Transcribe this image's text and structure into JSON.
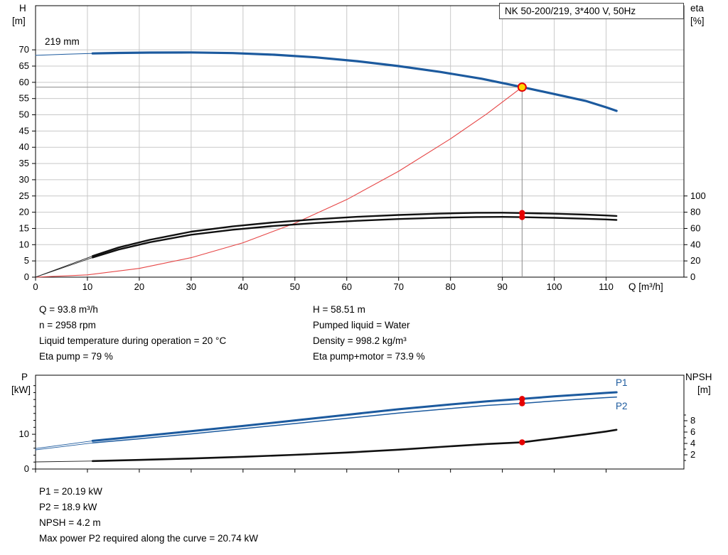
{
  "labels": {
    "h": "H",
    "h_unit": "[m]",
    "eta": "eta",
    "eta_unit": "[%]",
    "q": "Q [m³/h]",
    "p": "P",
    "p_unit": "[kW]",
    "npsh": "NPSH",
    "npsh_unit": "[m]",
    "impeller": "219 mm",
    "p1": "P1",
    "p2": "P2"
  },
  "info": {
    "left": [
      "Q = 93.8 m³/h",
      "n = 2958 rpm",
      "Liquid temperature during operation = 20 °C",
      "Eta pump = 79 %"
    ],
    "right": [
      "H = 58.51 m",
      "Pumped liquid = Water",
      "Density = 998.2 kg/m³",
      "Eta pump+motor = 73.9 %"
    ],
    "bottom": [
      "P1 = 20.19 kW",
      "P2 = 18.9 kW",
      "NPSH = 4.2 m",
      "Max power P2 required along the curve = 20.74 kW"
    ]
  },
  "colors": {
    "curve_blue": "#1c5a9e",
    "marker_red": "#e60000",
    "duty_yellow": "#ffd800",
    "system_red": "#e64545",
    "grid": "#c8c8c8"
  },
  "chart_data": [
    {
      "type": "line",
      "title": "NK 50-200/219, 3*400 V, 50Hz",
      "x_axis": {
        "label": "Q [m³/h]",
        "min": 0,
        "max": 125,
        "ticks": [
          0,
          10,
          20,
          30,
          40,
          50,
          60,
          70,
          80,
          90,
          100,
          110
        ],
        "show_labels": true
      },
      "y_left": {
        "label": "H [m]",
        "min": 0,
        "max": 83.6,
        "ticks": [
          0,
          5,
          10,
          15,
          20,
          25,
          30,
          35,
          40,
          45,
          50,
          55,
          60,
          65,
          70
        ]
      },
      "y_right": {
        "label": "eta [%]",
        "min": 0,
        "max": 334.4,
        "ticks": [
          0,
          20,
          40,
          60,
          80,
          100
        ]
      },
      "grid": true,
      "grid_color": "#c8c8c8",
      "crosshair": {
        "x": 93.8,
        "y": 58.51,
        "color": "#8a8a8a"
      },
      "series": [
        {
          "name": "head-219mm-lead",
          "axis": "left",
          "color": "#1c5a9e",
          "width": 1,
          "points": [
            [
              0,
              68.3
            ],
            [
              6,
              68.65
            ],
            [
              11,
              68.9
            ]
          ]
        },
        {
          "name": "head-219mm",
          "axis": "left",
          "color": "#1c5a9e",
          "width": 3.2,
          "points": [
            [
              11,
              68.9
            ],
            [
              16,
              69.05
            ],
            [
              22,
              69.15
            ],
            [
              30,
              69.2
            ],
            [
              38,
              69.0
            ],
            [
              46,
              68.5
            ],
            [
              54,
              67.7
            ],
            [
              62,
              66.5
            ],
            [
              70,
              65.0
            ],
            [
              78,
              63.2
            ],
            [
              86,
              61.1
            ],
            [
              93.8,
              58.51
            ],
            [
              100,
              56.4
            ],
            [
              106,
              54.3
            ],
            [
              110,
              52.3
            ],
            [
              112,
              51.2
            ]
          ]
        },
        {
          "name": "system-curve",
          "axis": "left",
          "color": "#e64545",
          "width": 1.1,
          "points": [
            [
              0,
              0
            ],
            [
              10,
              0.7
            ],
            [
              20,
              2.7
            ],
            [
              30,
              6.0
            ],
            [
              40,
              10.6
            ],
            [
              50,
              16.6
            ],
            [
              60,
              23.9
            ],
            [
              70,
              32.6
            ],
            [
              80,
              42.6
            ],
            [
              87,
              50.3
            ],
            [
              93.8,
              58.51
            ]
          ]
        },
        {
          "name": "eta-pump-lead",
          "axis": "right",
          "color": "#222222",
          "width": 0.9,
          "points": [
            [
              0,
              0
            ],
            [
              11,
              26
            ]
          ]
        },
        {
          "name": "eta-pump-motor-lead",
          "axis": "right",
          "color": "#222222",
          "width": 0.9,
          "points": [
            [
              0,
              0
            ],
            [
              11,
              24.2
            ]
          ]
        },
        {
          "name": "eta-pump",
          "axis": "right",
          "color": "#111111",
          "width": 2.4,
          "points": [
            [
              11,
              26
            ],
            [
              16,
              36.5
            ],
            [
              22,
              46
            ],
            [
              30,
              56
            ],
            [
              38,
              62.5
            ],
            [
              46,
              67.5
            ],
            [
              54,
              71.3
            ],
            [
              62,
              74.3
            ],
            [
              70,
              76.6
            ],
            [
              78,
              78.3
            ],
            [
              85,
              79.3
            ],
            [
              90,
              79.4
            ],
            [
              93.8,
              79.0
            ],
            [
              100,
              78.2
            ],
            [
              106,
              77.0
            ],
            [
              110,
              76.0
            ],
            [
              112,
              75.4
            ]
          ]
        },
        {
          "name": "eta-pump-motor",
          "axis": "right",
          "color": "#111111",
          "width": 2.4,
          "points": [
            [
              11,
              24.2
            ],
            [
              16,
              34
            ],
            [
              22,
              43
            ],
            [
              30,
              52.3
            ],
            [
              38,
              58.4
            ],
            [
              46,
              63.1
            ],
            [
              54,
              66.7
            ],
            [
              62,
              69.4
            ],
            [
              70,
              71.6
            ],
            [
              78,
              73.2
            ],
            [
              85,
              74.1
            ],
            [
              90,
              74.2
            ],
            [
              93.8,
              73.9
            ],
            [
              100,
              73.1
            ],
            [
              106,
              72.0
            ],
            [
              110,
              71.1
            ],
            [
              112,
              70.5
            ]
          ]
        }
      ],
      "markers": [
        {
          "name": "duty-point",
          "x": 93.8,
          "y": 58.51,
          "axis": "left",
          "r": 5.5,
          "fill": "#ffd800",
          "stroke": "#e60000"
        },
        {
          "name": "eta-pump-point",
          "x": 93.8,
          "y": 79.0,
          "axis": "right",
          "r": 4.2,
          "fill": "#e60000"
        },
        {
          "name": "eta-pump-motor-point",
          "x": 93.8,
          "y": 73.9,
          "axis": "right",
          "r": 4.2,
          "fill": "#e60000"
        }
      ]
    },
    {
      "type": "line",
      "title": "",
      "x_axis": {
        "label": "",
        "min": 0,
        "max": 125,
        "ticks": [
          0,
          10,
          20,
          30,
          40,
          50,
          60,
          70,
          80,
          90,
          100,
          110
        ],
        "show_labels": false
      },
      "y_left": {
        "label": "P [kW]",
        "min": 0,
        "max": 27,
        "ticks": [
          0,
          10
        ],
        "minor_ticks": [
          2,
          4,
          6,
          8,
          12,
          14,
          16,
          18,
          20,
          22,
          24
        ]
      },
      "y_right": {
        "label": "NPSH [m]",
        "min": -0.5,
        "max": 16,
        "ticks": [
          2,
          4,
          6,
          8
        ],
        "minor_ticks": [
          1,
          3,
          5,
          7,
          9
        ]
      },
      "grid": false,
      "series": [
        {
          "name": "p1-lead",
          "axis": "left",
          "color": "#1c5a9e",
          "width": 0.9,
          "points": [
            [
              0,
              5.9
            ],
            [
              11,
              8.1
            ]
          ]
        },
        {
          "name": "p2-lead",
          "axis": "left",
          "color": "#1c5a9e",
          "width": 0.9,
          "points": [
            [
              0,
              5.5
            ],
            [
              11,
              7.5
            ]
          ]
        },
        {
          "name": "p1",
          "axis": "left",
          "color": "#1c5a9e",
          "width": 3.0,
          "points": [
            [
              11,
              8.1
            ],
            [
              20,
              9.4
            ],
            [
              30,
              10.9
            ],
            [
              40,
              12.4
            ],
            [
              50,
              14.0
            ],
            [
              60,
              15.6
            ],
            [
              70,
              17.2
            ],
            [
              80,
              18.6
            ],
            [
              87,
              19.5
            ],
            [
              93.8,
              20.19
            ],
            [
              100,
              20.9
            ],
            [
              106,
              21.5
            ],
            [
              110,
              21.9
            ],
            [
              112,
              22.1
            ]
          ]
        },
        {
          "name": "p2",
          "axis": "left",
          "color": "#1c5a9e",
          "width": 1.5,
          "points": [
            [
              11,
              7.5
            ],
            [
              20,
              8.7
            ],
            [
              30,
              10.1
            ],
            [
              40,
              11.6
            ],
            [
              50,
              13.1
            ],
            [
              60,
              14.6
            ],
            [
              70,
              16.1
            ],
            [
              80,
              17.4
            ],
            [
              87,
              18.3
            ],
            [
              93.8,
              18.9
            ],
            [
              100,
              19.6
            ],
            [
              106,
              20.2
            ],
            [
              110,
              20.55
            ],
            [
              112,
              20.7
            ]
          ]
        },
        {
          "name": "npsh-lead",
          "axis": "right",
          "color": "#222222",
          "width": 0.9,
          "points": [
            [
              0,
              0.75
            ],
            [
              11,
              0.9
            ]
          ]
        },
        {
          "name": "npsh",
          "axis": "right",
          "color": "#111111",
          "width": 2.6,
          "points": [
            [
              11,
              0.9
            ],
            [
              20,
              1.1
            ],
            [
              30,
              1.35
            ],
            [
              40,
              1.65
            ],
            [
              50,
              2.0
            ],
            [
              60,
              2.4
            ],
            [
              70,
              2.9
            ],
            [
              80,
              3.5
            ],
            [
              87,
              3.9
            ],
            [
              93.8,
              4.2
            ],
            [
              100,
              4.9
            ],
            [
              106,
              5.6
            ],
            [
              110,
              6.1
            ],
            [
              112,
              6.4
            ]
          ]
        }
      ],
      "markers": [
        {
          "name": "p1-point",
          "x": 93.8,
          "y": 20.19,
          "axis": "left",
          "r": 4.2,
          "fill": "#e60000"
        },
        {
          "name": "p2-point",
          "x": 93.8,
          "y": 18.9,
          "axis": "left",
          "r": 4.2,
          "fill": "#e60000"
        },
        {
          "name": "npsh-point",
          "x": 93.8,
          "y": 4.2,
          "axis": "right",
          "r": 4.2,
          "fill": "#e60000"
        }
      ]
    }
  ]
}
